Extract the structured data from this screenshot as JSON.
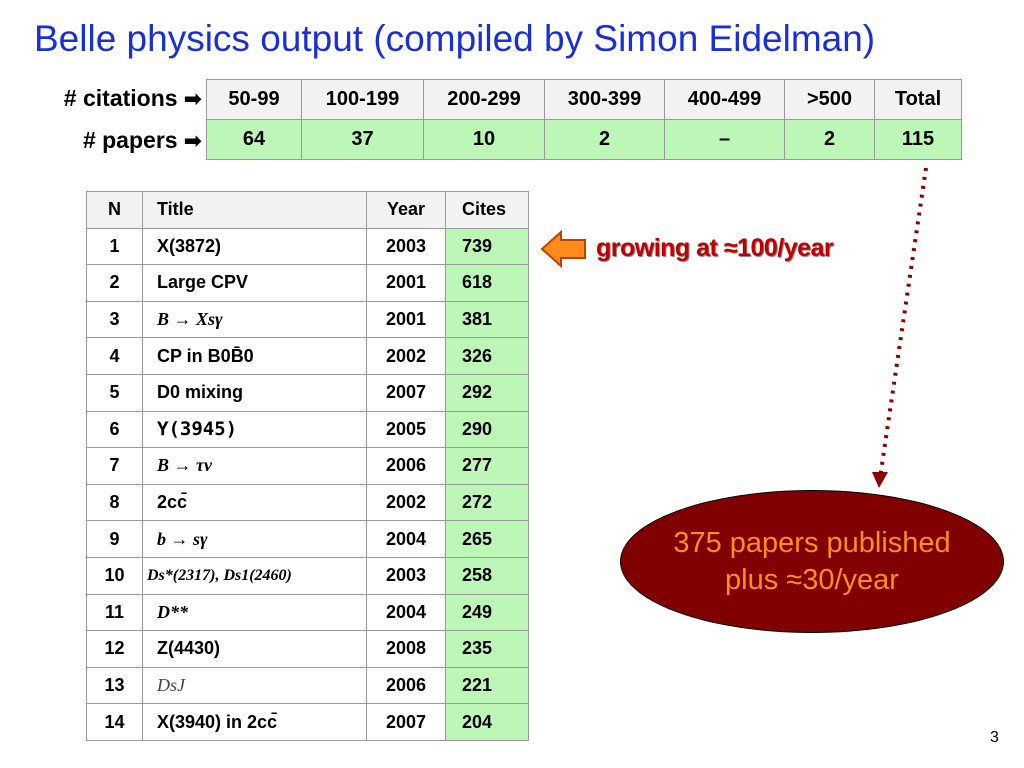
{
  "title": "Belle physics output (compiled by Simon Eidelman)",
  "labels": {
    "citations": "# citations",
    "papers": "# papers",
    "arrow": "➡"
  },
  "citation_table": {
    "headers": [
      "50-99",
      "100-199",
      "200-299",
      "300-399",
      "400-499",
      ">500",
      "Total"
    ],
    "values": [
      "64",
      "37",
      "10",
      "2",
      "–",
      "2",
      "115"
    ]
  },
  "paper_table": {
    "headers": [
      "N",
      "Title",
      "Year",
      "Cites"
    ],
    "rows": [
      [
        "1",
        "X(3872)",
        "2003",
        "739"
      ],
      [
        "2",
        "Large CPV",
        "2001",
        "618"
      ],
      [
        "3",
        "B → Xsγ",
        "2001",
        "381"
      ],
      [
        "4",
        "CP in B0B̄0",
        "2002",
        "326"
      ],
      [
        "5",
        "D0 mixing",
        "2007",
        "292"
      ],
      [
        "6",
        "Υ(3945)",
        "2005",
        "290"
      ],
      [
        "7",
        "B → τν",
        "2006",
        "277"
      ],
      [
        "8",
        "2cc̄",
        "2002",
        "272"
      ],
      [
        "9",
        "b → sγ",
        "2004",
        "265"
      ],
      [
        "10",
        "Ds*(2317), Ds1(2460)",
        "2003",
        "258"
      ],
      [
        "11",
        "D**",
        "2004",
        "249"
      ],
      [
        "12",
        "Z(4430)",
        "2008",
        "235"
      ],
      [
        "13",
        "DsJ",
        "2006",
        "221"
      ],
      [
        "14",
        "X(3940) in 2cc̄",
        "2007",
        "204"
      ]
    ]
  },
  "annotations": {
    "growing": "growing at ≈100/year",
    "ellipse_line1": "375 papers published",
    "ellipse_line2": "plus ≈30/year"
  },
  "page_number": "3",
  "colors": {
    "title": "#1a2fd6",
    "green_cells": "#bdf7b8",
    "ellipse_fill": "#800000",
    "ellipse_text": "#ff8c1a",
    "growing_text": "#c00000",
    "arrow_fill": "#ff8c1a",
    "dotted_line": "#8b0000"
  },
  "icons": {
    "left_arrow": "orange-left-arrow-icon",
    "row_arrow": "right-arrow-icon"
  }
}
